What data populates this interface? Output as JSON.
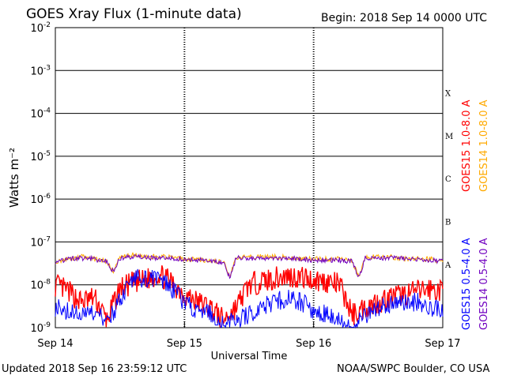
{
  "header": {
    "title": "GOES Xray Flux (1-minute data)",
    "begin": "Begin:  2018 Sep 14 0000 UTC"
  },
  "footer": {
    "updated": "Updated 2018 Sep 16 23:59:12 UTC",
    "credit": "NOAA/SWPC Boulder, CO USA"
  },
  "chart_data": {
    "type": "line",
    "title": "GOES Xray Flux (1-minute data)",
    "xlabel": "Universal Time",
    "ylabel": "Watts m⁻²",
    "yscale": "log",
    "ylim": [
      1e-09,
      0.01
    ],
    "xlim": [
      "2018-09-14 00:00",
      "2018-09-17 00:00"
    ],
    "x_ticks": [
      "Sep 14",
      "Sep 15",
      "Sep 16",
      "Sep 17"
    ],
    "y_ticks": [
      {
        "base": "10",
        "exp": "-2",
        "value": 0.01
      },
      {
        "base": "10",
        "exp": "-3",
        "value": 0.001
      },
      {
        "base": "10",
        "exp": "-4",
        "value": 0.0001
      },
      {
        "base": "10",
        "exp": "-5",
        "value": 1e-05
      },
      {
        "base": "10",
        "exp": "-6",
        "value": 1e-06
      },
      {
        "base": "10",
        "exp": "-7",
        "value": 1e-07
      },
      {
        "base": "10",
        "exp": "-8",
        "value": 1e-08
      },
      {
        "base": "10",
        "exp": "-9",
        "value": 1e-09
      }
    ],
    "flare_classes": [
      {
        "label": "X",
        "value": 0.0003
      },
      {
        "label": "M",
        "value": 3e-05
      },
      {
        "label": "C",
        "value": 3e-06
      },
      {
        "label": "B",
        "value": 3e-07
      },
      {
        "label": "A",
        "value": 3e-08
      }
    ],
    "grid": true,
    "legend_placement": "right",
    "series": [
      {
        "name": "GOES15 1.0-8.0 A",
        "color": "#ff0000",
        "x_days": [
          0.0,
          0.1,
          0.2,
          0.3,
          0.4,
          0.5,
          0.6,
          0.7,
          0.8,
          0.9,
          1.0,
          1.1,
          1.2,
          1.3,
          1.4,
          1.5,
          1.6,
          1.7,
          1.8,
          1.9,
          2.0,
          2.1,
          2.2,
          2.3,
          2.4,
          2.5,
          2.6,
          2.7,
          2.8,
          2.9,
          3.0
        ],
        "values": [
          1e-08,
          7e-09,
          4e-09,
          5e-09,
          1.5e-09,
          8e-09,
          1.1e-08,
          1.3e-08,
          1.8e-08,
          1.1e-08,
          6e-09,
          4e-09,
          3e-09,
          1.5e-09,
          3e-09,
          1e-08,
          1.2e-08,
          1.4e-08,
          1.6e-08,
          1.5e-08,
          1.3e-08,
          1.2e-08,
          1e-08,
          2e-09,
          3e-09,
          4e-09,
          5e-09,
          6e-09,
          7e-09,
          8e-09,
          7e-09
        ]
      },
      {
        "name": "GOES14 1.0-8.0 A",
        "color": "#ffaa00",
        "x_days": [
          0.0,
          0.1,
          0.2,
          0.3,
          0.4,
          0.45,
          0.5,
          0.6,
          0.7,
          0.8,
          0.9,
          1.0,
          1.1,
          1.2,
          1.3,
          1.35,
          1.4,
          1.5,
          1.6,
          1.7,
          1.8,
          1.9,
          2.0,
          2.1,
          2.2,
          2.3,
          2.35,
          2.4,
          2.5,
          2.6,
          2.7,
          2.8,
          2.9,
          3.0
        ],
        "values": [
          3.5e-08,
          4e-08,
          4.5e-08,
          4e-08,
          3.5e-08,
          2e-08,
          4.5e-08,
          5e-08,
          4.5e-08,
          4.5e-08,
          4.5e-08,
          4e-08,
          4e-08,
          3.5e-08,
          3.5e-08,
          1.5e-08,
          4.5e-08,
          4.5e-08,
          4.5e-08,
          4.5e-08,
          4.5e-08,
          4e-08,
          4e-08,
          4e-08,
          4e-08,
          3.5e-08,
          1.5e-08,
          4.5e-08,
          4.5e-08,
          4.5e-08,
          4e-08,
          4e-08,
          4e-08,
          3.5e-08
        ]
      },
      {
        "name": "GOES15 0.5-4.0 A",
        "color": "#0000ff",
        "x_days": [
          0.0,
          0.1,
          0.2,
          0.3,
          0.4,
          0.5,
          0.6,
          0.7,
          0.8,
          0.9,
          1.0,
          1.1,
          1.2,
          1.3,
          1.4,
          1.5,
          1.6,
          1.7,
          1.8,
          1.9,
          2.0,
          2.1,
          2.2,
          2.3,
          2.4,
          2.5,
          2.6,
          2.7,
          2.8,
          2.9,
          3.0
        ],
        "values": [
          3e-09,
          2.5e-09,
          2e-09,
          2e-09,
          1.5e-09,
          4e-09,
          1.5e-08,
          1.4e-08,
          1.3e-08,
          8e-09,
          4e-09,
          2.5e-09,
          2e-09,
          1.2e-09,
          1.5e-09,
          2e-09,
          3e-09,
          4e-09,
          5e-09,
          4e-09,
          2.5e-09,
          2e-09,
          1.5e-09,
          1.1e-09,
          2e-09,
          3e-09,
          3.5e-09,
          4e-09,
          4e-09,
          3e-09,
          2.5e-09
        ]
      },
      {
        "name": "GOES14 0.5-4.0 A",
        "color": "#7000c0",
        "x_days": [
          0.0,
          0.1,
          0.2,
          0.3,
          0.4,
          0.45,
          0.5,
          0.6,
          0.7,
          0.8,
          0.9,
          1.0,
          1.1,
          1.2,
          1.3,
          1.35,
          1.4,
          1.5,
          1.6,
          1.7,
          1.8,
          1.9,
          2.0,
          2.1,
          2.2,
          2.3,
          2.35,
          2.4,
          2.5,
          2.6,
          2.7,
          2.8,
          2.9,
          3.0
        ],
        "values": [
          3.5e-08,
          4e-08,
          4.2e-08,
          4e-08,
          3.5e-08,
          2e-08,
          4.2e-08,
          4.5e-08,
          4.2e-08,
          4.2e-08,
          4.2e-08,
          4e-08,
          3.8e-08,
          3.5e-08,
          3.3e-08,
          1.5e-08,
          4.2e-08,
          4.2e-08,
          4.2e-08,
          4.2e-08,
          4.2e-08,
          4e-08,
          3.8e-08,
          3.8e-08,
          3.8e-08,
          3.5e-08,
          1.5e-08,
          4.2e-08,
          4.2e-08,
          4.2e-08,
          4e-08,
          3.8e-08,
          3.8e-08,
          3.5e-08
        ]
      }
    ]
  }
}
